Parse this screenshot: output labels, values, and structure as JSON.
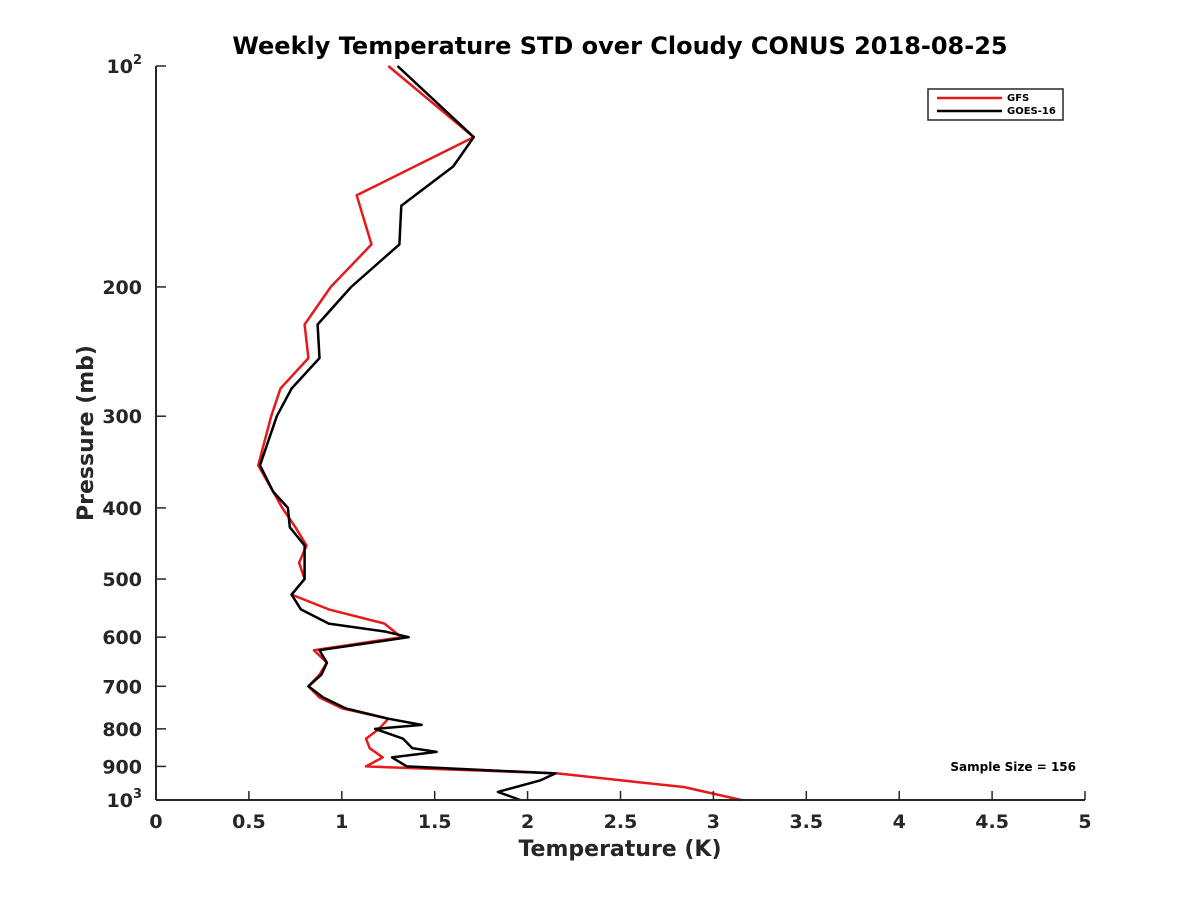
{
  "chart_data": {
    "type": "line",
    "title": "Weekly Temperature STD over Cloudy CONUS 2018-08-25",
    "xlabel": "Temperature (K)",
    "ylabel": "Pressure (mb)",
    "xlim": [
      0,
      5
    ],
    "ylim": [
      100,
      1000
    ],
    "yscale": "log",
    "yreversed": true,
    "x_ticks": [
      {
        "value": 0,
        "label": "0"
      },
      {
        "value": 0.5,
        "label": "0.5"
      },
      {
        "value": 1,
        "label": "1"
      },
      {
        "value": 1.5,
        "label": "1.5"
      },
      {
        "value": 2,
        "label": "2"
      },
      {
        "value": 2.5,
        "label": "2.5"
      },
      {
        "value": 3,
        "label": "3"
      },
      {
        "value": 3.5,
        "label": "3.5"
      },
      {
        "value": 4,
        "label": "4"
      },
      {
        "value": 4.5,
        "label": "4.5"
      },
      {
        "value": 5,
        "label": "5"
      }
    ],
    "y_ticks": [
      {
        "value": 100,
        "label": "10",
        "sup": "2"
      },
      {
        "value": 200,
        "label": "200"
      },
      {
        "value": 300,
        "label": "300"
      },
      {
        "value": 400,
        "label": "400"
      },
      {
        "value": 500,
        "label": "500"
      },
      {
        "value": 600,
        "label": "600"
      },
      {
        "value": 700,
        "label": "700"
      },
      {
        "value": 800,
        "label": "800"
      },
      {
        "value": 900,
        "label": "900"
      },
      {
        "value": 1000,
        "label": "10",
        "sup": "3"
      }
    ],
    "grid": false,
    "legend_position": "top-right",
    "series": [
      {
        "name": "GFS",
        "color": "#e41a1c",
        "points": [
          [
            1.25,
            100
          ],
          [
            1.71,
            125
          ],
          [
            1.08,
            150
          ],
          [
            1.16,
            175
          ],
          [
            0.94,
            200
          ],
          [
            0.8,
            225
          ],
          [
            0.82,
            250
          ],
          [
            0.67,
            275
          ],
          [
            0.62,
            300
          ],
          [
            0.55,
            350
          ],
          [
            0.68,
            400
          ],
          [
            0.75,
            425
          ],
          [
            0.81,
            450
          ],
          [
            0.77,
            475
          ],
          [
            0.8,
            500
          ],
          [
            0.73,
            525
          ],
          [
            0.93,
            550
          ],
          [
            1.23,
            575
          ],
          [
            1.32,
            600
          ],
          [
            0.85,
            625
          ],
          [
            0.92,
            650
          ],
          [
            0.88,
            675
          ],
          [
            0.82,
            700
          ],
          [
            0.88,
            725
          ],
          [
            1.0,
            750
          ],
          [
            1.25,
            775
          ],
          [
            1.2,
            800
          ],
          [
            1.13,
            825
          ],
          [
            1.15,
            850
          ],
          [
            1.22,
            875
          ],
          [
            1.13,
            900
          ],
          [
            2.16,
            920
          ],
          [
            2.5,
            940
          ],
          [
            2.84,
            960
          ],
          [
            3.15,
            1000
          ]
        ]
      },
      {
        "name": "GOES-16",
        "color": "#000000",
        "points": [
          [
            1.3,
            100
          ],
          [
            1.71,
            125
          ],
          [
            1.6,
            137
          ],
          [
            1.32,
            155
          ],
          [
            1.31,
            175
          ],
          [
            1.05,
            200
          ],
          [
            0.87,
            225
          ],
          [
            0.88,
            250
          ],
          [
            0.73,
            275
          ],
          [
            0.65,
            300
          ],
          [
            0.56,
            350
          ],
          [
            0.63,
            380
          ],
          [
            0.71,
            400
          ],
          [
            0.72,
            425
          ],
          [
            0.8,
            450
          ],
          [
            0.8,
            475
          ],
          [
            0.8,
            500
          ],
          [
            0.73,
            525
          ],
          [
            0.78,
            550
          ],
          [
            0.93,
            575
          ],
          [
            1.24,
            590
          ],
          [
            1.36,
            600
          ],
          [
            0.88,
            625
          ],
          [
            0.92,
            650
          ],
          [
            0.89,
            675
          ],
          [
            0.82,
            700
          ],
          [
            0.9,
            725
          ],
          [
            1.02,
            750
          ],
          [
            1.25,
            775
          ],
          [
            1.43,
            790
          ],
          [
            1.18,
            800
          ],
          [
            1.33,
            825
          ],
          [
            1.38,
            850
          ],
          [
            1.51,
            860
          ],
          [
            1.27,
            875
          ],
          [
            1.35,
            900
          ],
          [
            2.15,
            920
          ],
          [
            2.07,
            940
          ],
          [
            1.84,
            975
          ],
          [
            1.96,
            1000
          ]
        ]
      }
    ],
    "annotations": [
      "Sample Size = 156"
    ]
  }
}
